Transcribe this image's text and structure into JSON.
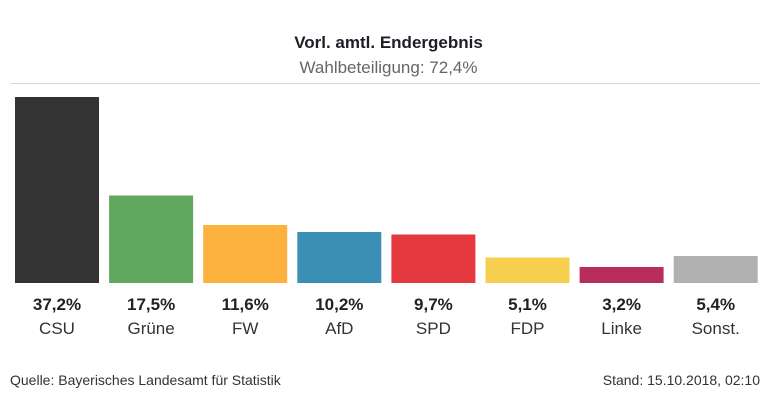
{
  "chart_data": {
    "type": "bar",
    "title": "Vorl. amtl. Endergebnis",
    "subtitle": "Wahlbeteiligung: 72,4%",
    "categories": [
      "CSU",
      "Grüne",
      "FW",
      "AfD",
      "SPD",
      "FDP",
      "Linke",
      "Sonst."
    ],
    "values": [
      37.2,
      17.5,
      11.6,
      10.2,
      9.7,
      5.1,
      3.2,
      5.4
    ],
    "value_labels": [
      "37,2%",
      "17,5%",
      "11,6%",
      "10,2%",
      "9,7%",
      "5,1%",
      "3,2%",
      "5,4%"
    ],
    "colors": [
      "#333333",
      "#5fa85e",
      "#fdb13f",
      "#3c8fb4",
      "#e4393f",
      "#f7cf4f",
      "#b72e5d",
      "#b0b0b0"
    ],
    "xlabel": "",
    "ylabel": "",
    "ylim": [
      0,
      37.2
    ],
    "grid": false,
    "legend": "none"
  },
  "footer": {
    "source": "Quelle: Bayerisches Landesamt für Statistik",
    "stand": "Stand: 15.10.2018, 02:10"
  }
}
